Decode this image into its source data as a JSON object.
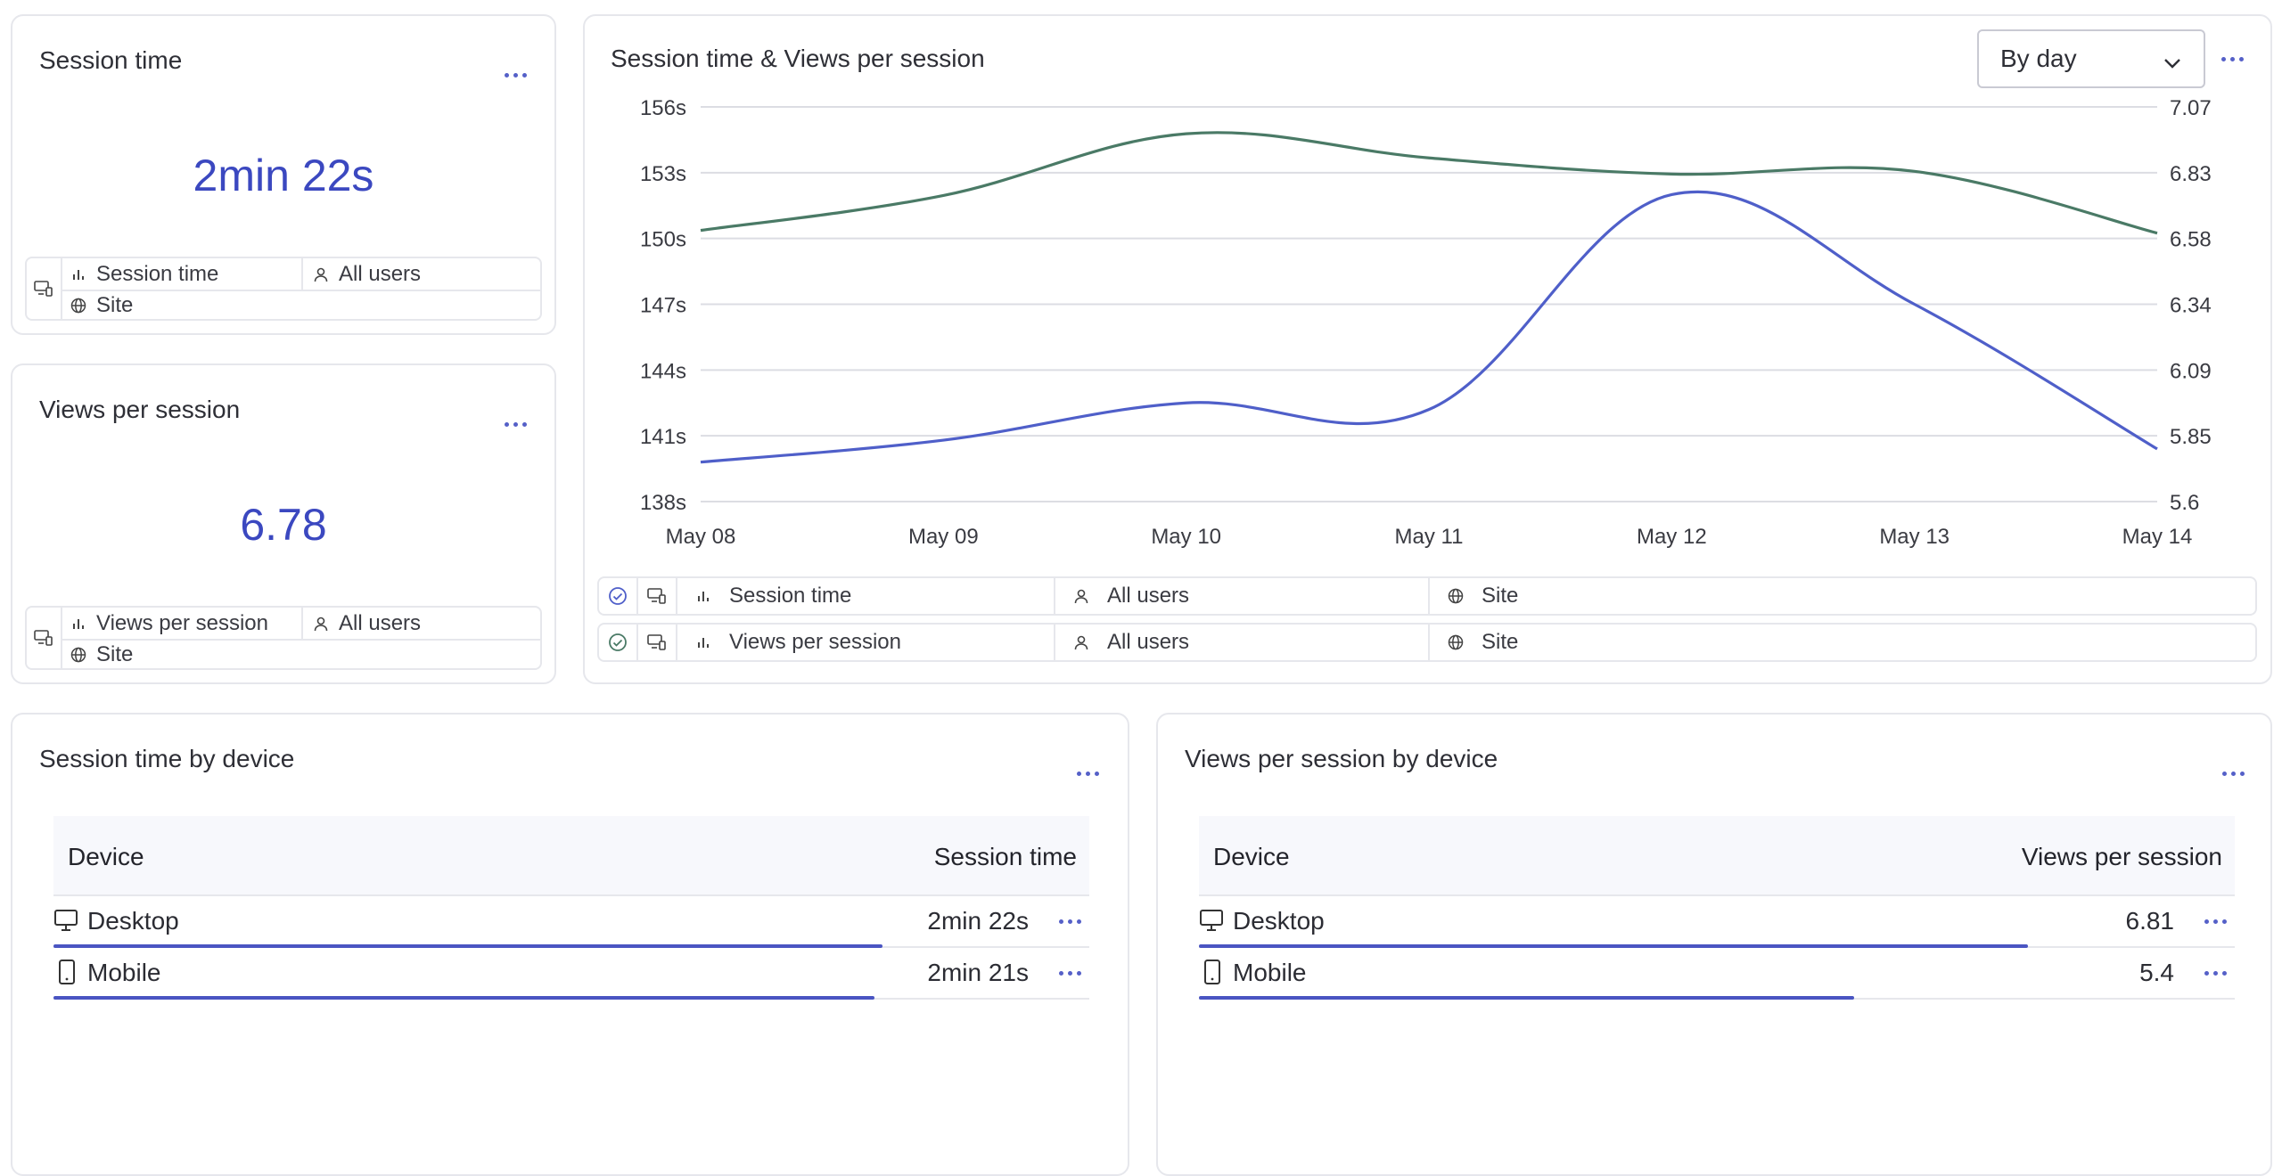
{
  "kpi_session": {
    "title": "Session time",
    "value": "2min 22s",
    "metric": "Session time",
    "segment": "All users",
    "scope": "Site"
  },
  "kpi_views": {
    "title": "Views per session",
    "value": "6.78",
    "metric": "Views per session",
    "segment": "All users",
    "scope": "Site"
  },
  "trend": {
    "title": "Session time & Views per session",
    "period_select": "By day",
    "legend": [
      {
        "metric": "Session time",
        "segment": "All users",
        "scope": "Site"
      },
      {
        "metric": "Views per session",
        "segment": "All users",
        "scope": "Site"
      }
    ]
  },
  "chart_data": {
    "type": "line",
    "title": "Session time & Views per session",
    "x": [
      "May 08",
      "May 09",
      "May 10",
      "May 11",
      "May 12",
      "May 13",
      "May 14"
    ],
    "y_left_ticks": [
      "156s",
      "153s",
      "150s",
      "147s",
      "144s",
      "141s",
      "138s"
    ],
    "y_right_ticks": [
      "7.07",
      "6.83",
      "6.58",
      "6.34",
      "6.09",
      "5.85",
      "5.6"
    ],
    "y_left_range": [
      138,
      156
    ],
    "y_right_range": [
      5.6,
      7.07
    ],
    "grid": true,
    "series": [
      {
        "metric": "Session time",
        "axis": "left",
        "color": "#4f5fc9",
        "values": [
          139.8,
          140.8,
          142.5,
          142.2,
          152.0,
          147.0,
          140.4
        ]
      },
      {
        "metric": "Views per session",
        "axis": "right",
        "color": "#4a7a66",
        "values": [
          6.61,
          6.74,
          6.97,
          6.88,
          6.82,
          6.83,
          6.6
        ]
      }
    ]
  },
  "session_by_device": {
    "title": "Session time by device",
    "col_device": "Device",
    "col_value": "Session time",
    "rows": [
      {
        "icon": "desktop-icon",
        "device": "Desktop",
        "value": "2min 22s",
        "share": 1.0
      },
      {
        "icon": "mobile-icon",
        "device": "Mobile",
        "value": "2min 21s",
        "share": 0.99
      }
    ]
  },
  "views_by_device": {
    "title": "Views per session by device",
    "col_device": "Device",
    "col_value": "Views per session",
    "rows": [
      {
        "icon": "desktop-icon",
        "device": "Desktop",
        "value": "6.81",
        "share": 1.0
      },
      {
        "icon": "mobile-icon",
        "device": "Mobile",
        "value": "5.4",
        "share": 0.79
      }
    ]
  },
  "colors": {
    "accent": "#4a55c2",
    "series_time": "#4f5fc9",
    "series_views": "#4a7a66"
  }
}
